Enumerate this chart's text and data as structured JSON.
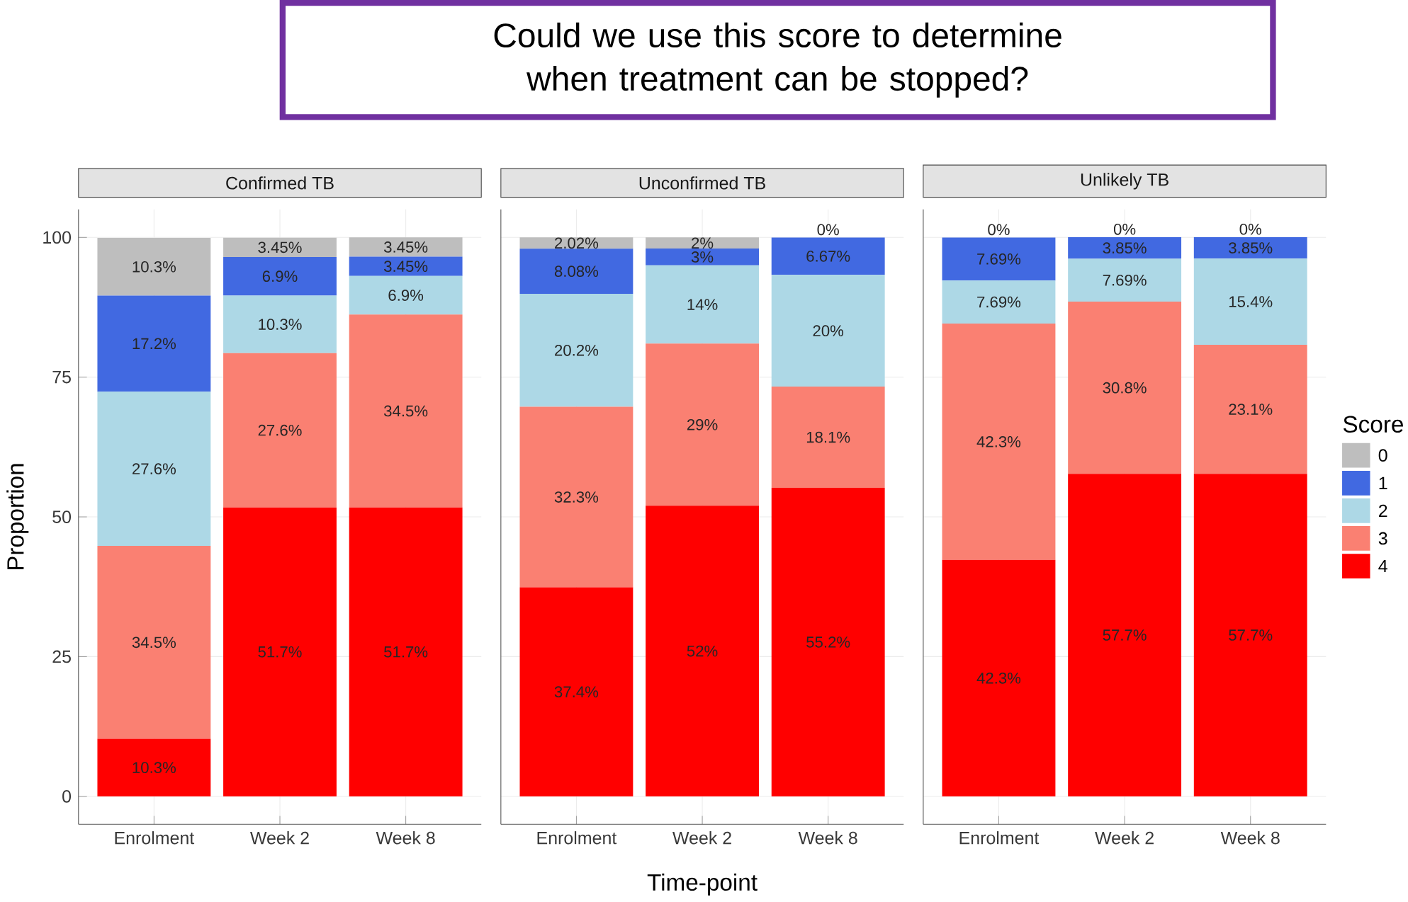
{
  "chart_data": [
    {
      "type": "bar",
      "stacked": true,
      "title": "Confirmed TB",
      "ylabel": "Proportion",
      "categories": [
        "Enrolment",
        "Week 2",
        "Week 8"
      ],
      "ylim": [
        -5,
        105
      ],
      "yticks": [
        0,
        25,
        50,
        75,
        100
      ],
      "grid": true,
      "series": [
        {
          "color": "#ff0000",
          "values": [
            10.3,
            51.7,
            51.7
          ],
          "value_labels": [
            "10.3%",
            "51.7%",
            "51.7%"
          ]
        },
        {
          "color": "#fa8072",
          "values": [
            34.5,
            27.6,
            34.5
          ],
          "value_labels": [
            "34.5%",
            "27.6%",
            "34.5%"
          ]
        },
        {
          "color": "#add8e6",
          "values": [
            27.6,
            10.3,
            6.9
          ],
          "value_labels": [
            "27.6%",
            "10.3%",
            "6.9%"
          ]
        },
        {
          "color": "#4169e1",
          "values": [
            17.2,
            6.9,
            3.45
          ],
          "value_labels": [
            "17.2%",
            "6.9%",
            "3.45%"
          ]
        },
        {
          "color": "#bebebe",
          "values": [
            10.3,
            3.45,
            3.45
          ],
          "value_labels": [
            "10.3%",
            "3.45%",
            "3.45%"
          ]
        }
      ]
    },
    {
      "type": "bar",
      "stacked": true,
      "title": "Unconfirmed TB",
      "xlabel": "Time-point",
      "categories": [
        "Enrolment",
        "Week 2",
        "Week 8"
      ],
      "ylim": [
        -5,
        105
      ],
      "yticks": [
        0,
        25,
        50,
        75,
        100
      ],
      "grid": true,
      "tick_labels": "x",
      "annotations": [
        "Could we use this score to determine when treatment can be stopped?"
      ],
      "series": [
        {
          "color": "#ff0000",
          "values": [
            37.4,
            52,
            55.2
          ],
          "value_labels": [
            "37.4%",
            "52%",
            "55.2%"
          ]
        },
        {
          "color": "#fa8072",
          "values": [
            32.3,
            29,
            18.1
          ],
          "value_labels": [
            "32.3%",
            "29%",
            "18.1%"
          ]
        },
        {
          "color": "#add8e6",
          "values": [
            20.2,
            14,
            20
          ],
          "value_labels": [
            "20.2%",
            "14%",
            "20%"
          ]
        },
        {
          "color": "#4169e1",
          "values": [
            8.08,
            3,
            6.67
          ],
          "value_labels": [
            "8.08%",
            "3%",
            "6.67%"
          ]
        },
        {
          "color": "#bebebe",
          "values": [
            2.02,
            2,
            0
          ],
          "value_labels": [
            "2.02%",
            "2%",
            "0%"
          ]
        }
      ]
    },
    {
      "type": "bar",
      "stacked": true,
      "title": "Unlikely TB",
      "categories": [
        "Enrolment",
        "Week 2",
        "Week 8"
      ],
      "ylim": [
        -5,
        105
      ],
      "yticks": [
        0,
        25,
        50,
        75,
        100
      ],
      "grid": true,
      "tick_labels": "x",
      "legend": "right",
      "legend_title": "Score",
      "series": [
        {
          "name": "4",
          "color": "#ff0000",
          "values": [
            42.3,
            57.7,
            57.7
          ],
          "value_labels": [
            "42.3%",
            "57.7%",
            "57.7%"
          ]
        },
        {
          "name": "3",
          "color": "#fa8072",
          "values": [
            42.3,
            30.8,
            23.1
          ],
          "value_labels": [
            "42.3%",
            "30.8%",
            "23.1%"
          ]
        },
        {
          "name": "2",
          "color": "#add8e6",
          "values": [
            7.69,
            7.69,
            15.4
          ],
          "value_labels": [
            "7.69%",
            "7.69%",
            "15.4%"
          ]
        },
        {
          "name": "1",
          "color": "#4169e1",
          "values": [
            7.69,
            3.85,
            3.85
          ],
          "value_labels": [
            "7.69%",
            "3.85%",
            "3.85%"
          ]
        },
        {
          "name": "0",
          "color": "#bebebe",
          "values": [
            0,
            0,
            0
          ],
          "value_labels": [
            "0%",
            "0%",
            "0%"
          ]
        }
      ]
    }
  ]
}
